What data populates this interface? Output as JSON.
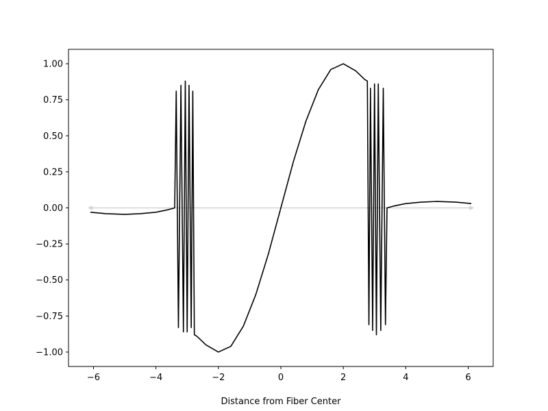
{
  "chart_data": {
    "type": "line",
    "title": "",
    "xlabel": "Distance from Fiber Center",
    "ylabel": "",
    "xlim": [
      -6.8,
      6.8
    ],
    "ylim": [
      -1.1,
      1.1
    ],
    "x_ticks": [
      -6,
      -4,
      -2,
      0,
      2,
      4,
      6
    ],
    "x_tick_labels": [
      "−6",
      "−4",
      "−2",
      "0",
      "2",
      "4",
      "6"
    ],
    "y_ticks": [
      1.0,
      0.75,
      0.5,
      0.25,
      0.0,
      -0.25,
      -0.5,
      -0.75,
      -1.0
    ],
    "y_tick_labels": [
      "1.00",
      "0.75",
      "0.50",
      "0.25",
      "0.00",
      "−0.25",
      "−0.50",
      "−0.75",
      "−1.00"
    ],
    "grid": false,
    "legend": "none",
    "series": [
      {
        "color": "#000000",
        "x": [
          -6.1,
          -5.6,
          -5.0,
          -4.5,
          -4.0,
          -3.6,
          -3.4,
          -3.35,
          -3.28,
          -3.2,
          -3.12,
          -3.06,
          -3.0,
          -2.94,
          -2.87,
          -2.82,
          -2.77,
          -2.69,
          -2.4,
          -2.0,
          -1.6,
          -1.2,
          -0.8,
          -0.4,
          0.0,
          0.4,
          0.8,
          1.2,
          1.6,
          2.0,
          2.4,
          2.69,
          2.77,
          2.82,
          2.87,
          2.94,
          3.0,
          3.06,
          3.12,
          3.2,
          3.28,
          3.35,
          3.4,
          3.6,
          4.0,
          4.5,
          5.0,
          5.6,
          6.1
        ],
        "y": [
          -0.03,
          -0.04,
          -0.045,
          -0.04,
          -0.03,
          -0.012,
          0.0,
          0.81,
          -0.83,
          0.85,
          -0.86,
          0.88,
          -0.86,
          0.85,
          -0.83,
          0.81,
          -0.88,
          -0.89,
          -0.95,
          -1.0,
          -0.96,
          -0.82,
          -0.6,
          -0.32,
          0.0,
          0.32,
          0.6,
          0.82,
          0.96,
          1.0,
          0.95,
          0.89,
          0.88,
          -0.81,
          0.83,
          -0.85,
          0.86,
          -0.88,
          0.86,
          -0.85,
          0.83,
          -0.81,
          0.0,
          0.012,
          0.03,
          0.04,
          0.045,
          0.04,
          0.03
        ]
      }
    ],
    "reference_line": {
      "color": "#d3d3d3",
      "x": [
        -6.1,
        6.1
      ],
      "y": [
        0.0,
        0.0
      ],
      "arrowheads": "both"
    }
  }
}
